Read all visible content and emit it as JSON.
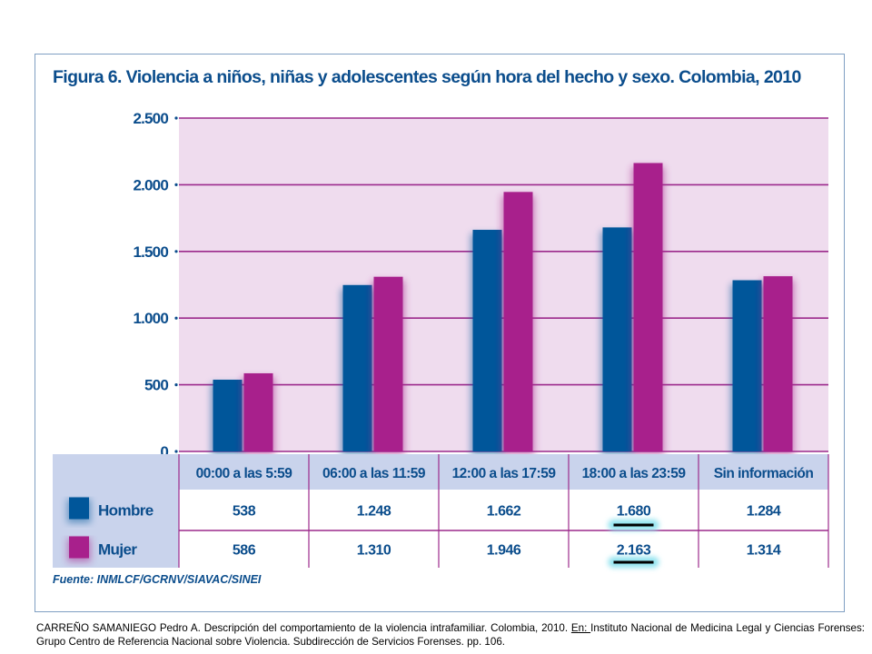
{
  "title": "Figura 6. Violencia a niños, niñas y adolescentes según hora del hecho y sexo. Colombia, 2010",
  "source": "Fuente: INMLCF/GCRNV/SIAVAC/SINEI",
  "citation": {
    "part1": "CARREÑO SAMANIEGO Pedro A. Descripción del comportamiento de la violencia intrafamiliar. Colombia,  2010. ",
    "underlined": "En: ",
    "part2": "Instituto Nacional de Medicina Legal y Ciencias Forenses: Grupo Centro de Referencia Nacional sobre Violencia. Subdirección de Servicios Forenses. pp. 106."
  },
  "colors": {
    "hombre": "#00569a",
    "mujer": "#a8208c",
    "plot_bg": "#efdcee",
    "gridline": "#9c2a8c",
    "header_bg": "#c9d3ec",
    "text": "#0b4d8c",
    "highlight": "#8fe3ef"
  },
  "chart_data": {
    "type": "bar",
    "title": "Figura 6. Violencia a niños, niñas y adolescentes según hora del hecho y sexo. Colombia, 2010",
    "categories": [
      "00:00 a las 5:59",
      "06:00 a las 11:59",
      "12:00 a las 17:59",
      "18:00 a las 23:59",
      "Sin información"
    ],
    "series": [
      {
        "name": "Hombre",
        "values": [
          538,
          1248,
          1662,
          1680,
          1284
        ],
        "labels": [
          "538",
          "1.248",
          "1.662",
          "1.680",
          "1.284"
        ]
      },
      {
        "name": "Mujer",
        "values": [
          586,
          1310,
          1946,
          2163,
          1314
        ],
        "labels": [
          "586",
          "1.310",
          "1.946",
          "2.163",
          "1.314"
        ]
      }
    ],
    "yticks": [
      0,
      500,
      1000,
      1500,
      2000,
      2500
    ],
    "ytick_labels": [
      "0",
      "500",
      "1.000",
      "1.500",
      "2.000",
      "2.500"
    ],
    "ylim": [
      0,
      2500
    ],
    "grid": true,
    "data_table": true,
    "highlighted_cells": [
      {
        "category": "18:00 a las 23:59",
        "series": "Hombre"
      },
      {
        "category": "18:00 a las 23:59",
        "series": "Mujer"
      }
    ]
  }
}
